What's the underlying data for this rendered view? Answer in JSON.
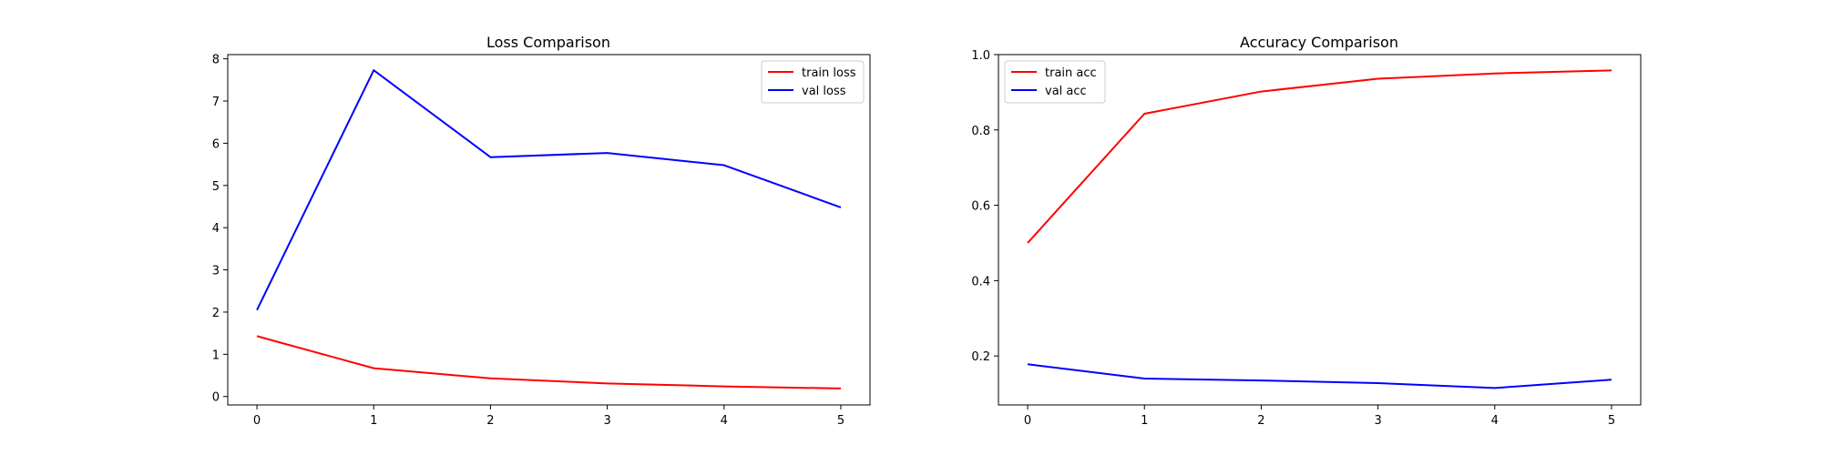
{
  "chart_data": [
    {
      "type": "line",
      "title": "Loss Comparison",
      "xlabel": "",
      "ylabel": "",
      "x": [
        0,
        1,
        2,
        3,
        4,
        5
      ],
      "xticks": [
        0,
        1,
        2,
        3,
        4,
        5
      ],
      "yticks": [
        0,
        1,
        2,
        3,
        4,
        5,
        6,
        7,
        8
      ],
      "xlim": [
        -0.25,
        5.25
      ],
      "ylim": [
        -0.2,
        8.1
      ],
      "grid": false,
      "legend_position": "top-right",
      "series": [
        {
          "name": "train loss",
          "color": "#ff0000",
          "values": [
            1.43,
            0.67,
            0.43,
            0.31,
            0.24,
            0.19
          ]
        },
        {
          "name": "val loss",
          "color": "#0000ff",
          "values": [
            2.05,
            7.73,
            5.67,
            5.77,
            5.48,
            4.48
          ]
        }
      ]
    },
    {
      "type": "line",
      "title": "Accuracy Comparison",
      "xlabel": "",
      "ylabel": "",
      "x": [
        0,
        1,
        2,
        3,
        4,
        5
      ],
      "xticks": [
        0,
        1,
        2,
        3,
        4,
        5
      ],
      "yticks": [
        0.2,
        0.4,
        0.6,
        0.8,
        1.0
      ],
      "ytick_labels": [
        "0.2",
        "0.4",
        "0.6",
        "0.8",
        "1.0"
      ],
      "xlim": [
        -0.25,
        5.25
      ],
      "ylim": [
        0.07,
        1.0
      ],
      "grid": false,
      "legend_position": "top-left",
      "series": [
        {
          "name": "train acc",
          "color": "#ff0000",
          "values": [
            0.5,
            0.843,
            0.902,
            0.936,
            0.95,
            0.958
          ]
        },
        {
          "name": "val acc",
          "color": "#0000ff",
          "values": [
            0.178,
            0.14,
            0.135,
            0.128,
            0.115,
            0.137
          ]
        }
      ]
    }
  ]
}
